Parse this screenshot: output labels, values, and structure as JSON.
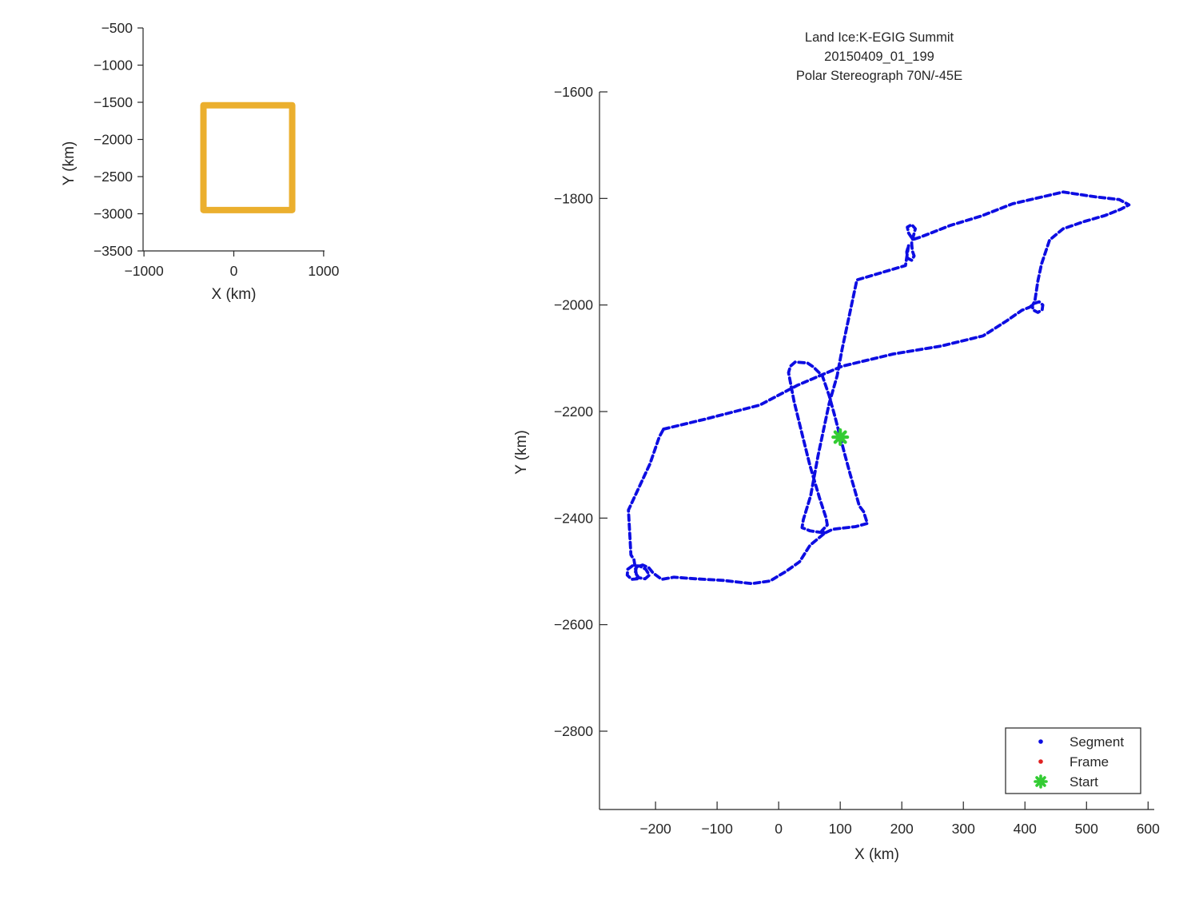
{
  "figure": {
    "background": "#ffffff",
    "axis_color": "#262626"
  },
  "colors": {
    "segment_blue": "#0d0de2",
    "frame_red": "#e02222",
    "start_green": "#33cc33",
    "coverage_orange": "#ebaf2e",
    "legend_border": "#333333"
  },
  "chart_data": [
    {
      "id": "overview",
      "type": "line",
      "title": "",
      "xlabel": "X (km)",
      "ylabel": "Y (km)",
      "xlim": [
        -1010,
        1010
      ],
      "ylim": [
        -3500,
        -500
      ],
      "xticks": [
        -1000,
        0,
        1000
      ],
      "yticks": [
        -500,
        -1000,
        -1500,
        -2000,
        -2500,
        -3000,
        -3500
      ],
      "grid": false,
      "series": [
        {
          "name": "coverage-box",
          "shape": "rect",
          "color": "#ebaf2e",
          "linewidth": 8,
          "x_range": [
            -338,
            650
          ],
          "y_range": [
            -2950,
            -1540
          ]
        }
      ]
    },
    {
      "id": "route",
      "type": "line",
      "title_lines": [
        "Land Ice:K-EGIG Summit",
        "20150409_01_199",
        "Polar Stereograph 70N/-45E"
      ],
      "xlabel": "X (km)",
      "ylabel": "Y (km)",
      "xlim": [
        -291,
        610
      ],
      "ylim": [
        -2947,
        -1600
      ],
      "xticks": [
        -200,
        -100,
        0,
        100,
        200,
        300,
        400,
        500,
        600
      ],
      "yticks": [
        -1600,
        -1800,
        -2000,
        -2200,
        -2400,
        -2600,
        -2800
      ],
      "grid": false,
      "legend": {
        "position": "bottom-right",
        "entries": [
          {
            "label": "Segment",
            "marker": "dot",
            "color": "#0d0de2"
          },
          {
            "label": "Frame",
            "marker": "dot",
            "color": "#e02222"
          },
          {
            "label": "Start",
            "marker": "star",
            "color": "#33cc33"
          }
        ]
      },
      "start_point": {
        "x": 100,
        "y": -2248
      },
      "series": [
        {
          "name": "segment-track",
          "color": "#0d0de2",
          "style": "dotted",
          "points": [
            [
              -187,
              -2233
            ],
            [
              -122,
              -2215
            ],
            [
              -31,
              -2188
            ],
            [
              30,
              -2151
            ],
            [
              103,
              -2115
            ],
            [
              186,
              -2092
            ],
            [
              264,
              -2077
            ],
            [
              332,
              -2058
            ],
            [
              370,
              -2030
            ],
            [
              395,
              -2010
            ],
            [
              408,
              -2004
            ],
            [
              415,
              -1997
            ],
            [
              423,
              -1994
            ],
            [
              429,
              -2000
            ],
            [
              428,
              -2009
            ],
            [
              421,
              -2014
            ],
            [
              413,
              -2009
            ],
            [
              412,
              -2001
            ],
            [
              416,
              -1993
            ],
            [
              421,
              -1955
            ],
            [
              427,
              -1923
            ],
            [
              440,
              -1878
            ],
            [
              462,
              -1857
            ],
            [
              497,
              -1843
            ],
            [
              530,
              -1832
            ],
            [
              556,
              -1820
            ],
            [
              569,
              -1812
            ],
            [
              553,
              -1802
            ],
            [
              514,
              -1797
            ],
            [
              462,
              -1788
            ],
            [
              380,
              -1810
            ],
            [
              329,
              -1833
            ],
            [
              278,
              -1851
            ],
            [
              245,
              -1866
            ],
            [
              229,
              -1873
            ],
            [
              218,
              -1877
            ],
            [
              211,
              -1865
            ],
            [
              209,
              -1854
            ],
            [
              216,
              -1849
            ],
            [
              222,
              -1857
            ],
            [
              219,
              -1870
            ],
            [
              216,
              -1884
            ],
            [
              217,
              -1898
            ],
            [
              220,
              -1908
            ],
            [
              216,
              -1916
            ],
            [
              209,
              -1912
            ],
            [
              208,
              -1900
            ],
            [
              211,
              -1888
            ],
            [
              206,
              -1926
            ],
            [
              127,
              -1953
            ],
            [
              103,
              -2083
            ],
            [
              95,
              -2133
            ],
            [
              82,
              -2185
            ],
            [
              64,
              -2283
            ],
            [
              52,
              -2358
            ],
            [
              40,
              -2403
            ],
            [
              38,
              -2418
            ],
            [
              51,
              -2424
            ],
            [
              75,
              -2428
            ],
            [
              88,
              -2421
            ],
            [
              125,
              -2416
            ],
            [
              144,
              -2410
            ],
            [
              138,
              -2388
            ],
            [
              131,
              -2377
            ],
            [
              125,
              -2353
            ],
            [
              116,
              -2317
            ],
            [
              108,
              -2283
            ],
            [
              100,
              -2248
            ],
            [
              92,
              -2212
            ],
            [
              82,
              -2170
            ],
            [
              71,
              -2133
            ],
            [
              56,
              -2116
            ],
            [
              47,
              -2109
            ],
            [
              27,
              -2107
            ],
            [
              19,
              -2115
            ],
            [
              16,
              -2127
            ],
            [
              25,
              -2181
            ],
            [
              38,
              -2242
            ],
            [
              51,
              -2302
            ],
            [
              66,
              -2361
            ],
            [
              77,
              -2400
            ],
            [
              79,
              -2413
            ],
            [
              70,
              -2424
            ],
            [
              75,
              -2428
            ],
            [
              51,
              -2451
            ],
            [
              34,
              -2482
            ],
            [
              12,
              -2500
            ],
            [
              -14,
              -2518
            ],
            [
              -44,
              -2523
            ],
            [
              -90,
              -2517
            ],
            [
              -135,
              -2514
            ],
            [
              -170,
              -2511
            ],
            [
              -190,
              -2515
            ],
            [
              -204,
              -2503
            ],
            [
              -211,
              -2493
            ],
            [
              -221,
              -2488
            ],
            [
              -231,
              -2492
            ],
            [
              -233,
              -2503
            ],
            [
              -227,
              -2512
            ],
            [
              -217,
              -2514
            ],
            [
              -210,
              -2507
            ],
            [
              -216,
              -2496
            ],
            [
              -226,
              -2490
            ],
            [
              -237,
              -2489
            ],
            [
              -245,
              -2496
            ],
            [
              -246,
              -2507
            ],
            [
              -239,
              -2515
            ],
            [
              -230,
              -2514
            ],
            [
              -235,
              -2478
            ],
            [
              -240,
              -2469
            ],
            [
              -244,
              -2385
            ],
            [
              -209,
              -2298
            ],
            [
              -194,
              -2248
            ],
            [
              -187,
              -2233
            ]
          ]
        }
      ]
    }
  ]
}
